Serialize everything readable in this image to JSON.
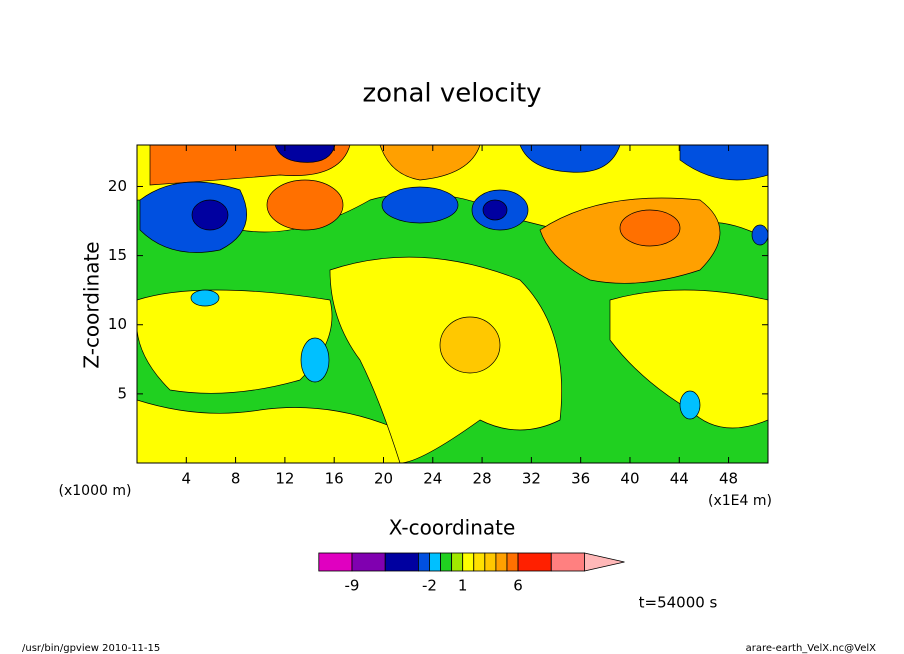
{
  "chart_data": {
    "type": "contour",
    "title": "zonal velocity",
    "x_label": "X-coordinate",
    "y_label": "Z-coordinate",
    "x_unit_label": "(x1E4 m)",
    "y_unit_label": "(x1000 m)",
    "xlim": [
      0,
      51.2
    ],
    "xticks": [
      4,
      8,
      12,
      16,
      20,
      24,
      28,
      32,
      36,
      40,
      44,
      48
    ],
    "ylim": [
      0,
      23
    ],
    "yticks": [
      5,
      10,
      15,
      20
    ],
    "colorbar": {
      "levels": [
        -12,
        -9,
        -6,
        -3,
        -2,
        -1,
        0,
        1,
        2,
        3,
        4,
        5,
        6,
        9,
        12
      ],
      "colors": [
        "#e000c0",
        "#8000b0",
        "#0000a0",
        "#0050e0",
        "#00c0ff",
        "#20d020",
        "#a0e800",
        "#ffff00",
        "#ffe000",
        "#ffc800",
        "#ffa000",
        "#ff7000",
        "#ff2000",
        "#ff8080",
        "#ffb8b8"
      ],
      "ticks": [
        -9,
        -2,
        1,
        6
      ]
    },
    "annotation": "t=54000 s",
    "footer_left": "/usr/bin/gpview  2010-11-15",
    "footer_right": "arare-earth_VelX.nc@VelX"
  }
}
